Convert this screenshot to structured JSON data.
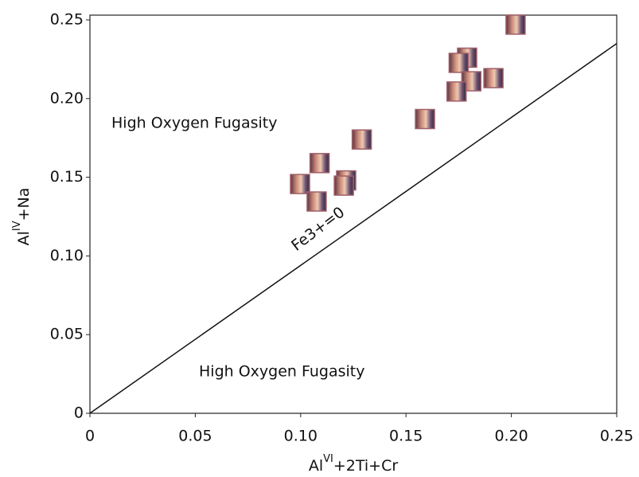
{
  "chart_data": {
    "type": "scatter",
    "xlabel": {
      "base": "Al",
      "sup": "VI",
      "rest": "+2Ti+Cr"
    },
    "ylabel": {
      "base": "Al",
      "sup": "IV",
      "rest": "+Na"
    },
    "annotations": [
      "High Oxygen Fugasity",
      "High Oxygen Fugasity",
      "Fe3+=0"
    ],
    "x": [
      0.202,
      0.179,
      0.175,
      0.1915,
      0.181,
      0.174,
      0.159,
      0.129,
      0.109,
      0.1216,
      0.1205,
      0.0997,
      0.1076
    ],
    "y": [
      0.247,
      0.226,
      0.2227,
      0.213,
      0.211,
      0.2045,
      0.187,
      0.174,
      0.159,
      0.148,
      0.1447,
      0.1457,
      0.1346
    ],
    "color": "#a0606a",
    "reference_line": {
      "x": [
        0,
        0.25
      ],
      "y": [
        0,
        0.235
      ]
    },
    "xlim": [
      0,
      0.25
    ],
    "ylim": [
      0,
      0.25
    ],
    "xticks": [
      0,
      0.05,
      {
        "value": 0.1,
        "label": "0.10"
      },
      0.15,
      {
        "value": 0.2,
        "label": "0.20"
      },
      0.25
    ],
    "yticks": [
      0,
      0.05,
      {
        "value": 0.1,
        "label": "0.10"
      },
      0.15,
      {
        "value": 0.2,
        "label": "0.20"
      },
      0.25
    ],
    "grid": false
  }
}
